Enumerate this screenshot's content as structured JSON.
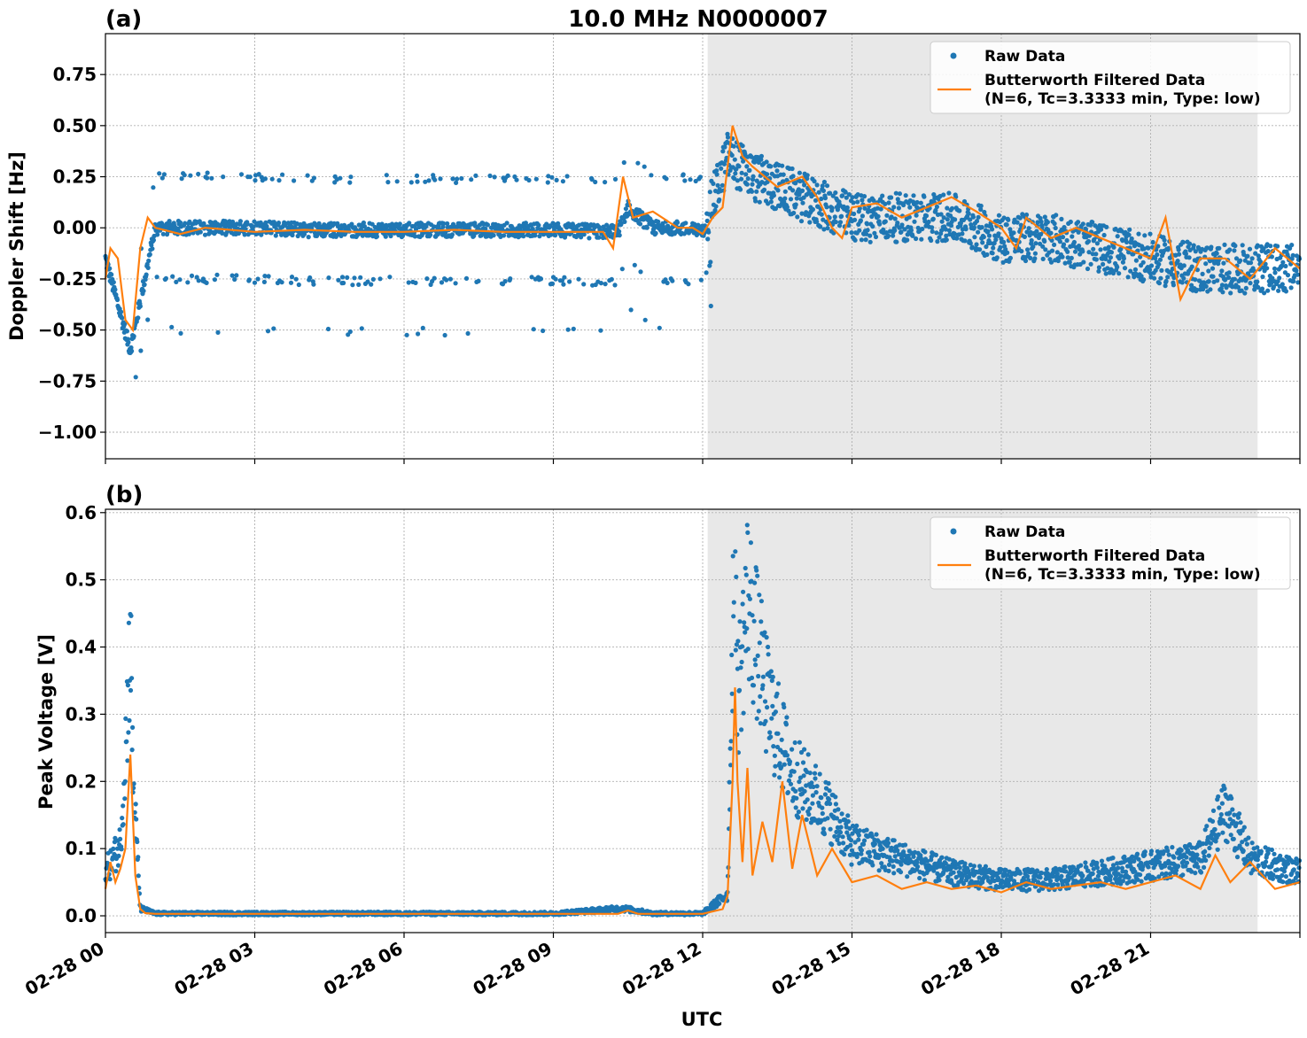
{
  "figure": {
    "title": "10.0 MHz N0000007",
    "xlabel": "UTC",
    "x_tick_labels": [
      "02-28 00",
      "02-28 03",
      "02-28 06",
      "02-28 09",
      "02-28 12",
      "02-28 15",
      "02-28 18",
      "02-28 21"
    ]
  },
  "colors": {
    "raw": "#1f77b4",
    "filtered": "#ff7f0e",
    "shade": "#e8e8e8",
    "grid": "#b0b0b0"
  },
  "chart_data": [
    {
      "panel_label": "(a)",
      "type": "scatter",
      "ylabel": "Doppler Shift [Hz]",
      "xlim_hours_utc": [
        0,
        24
      ],
      "ylim": [
        -1.13,
        0.95
      ],
      "yticks": [
        0.75,
        0.5,
        0.25,
        0.0,
        -0.25,
        -0.5,
        -0.75,
        -1.0
      ],
      "ytick_labels": [
        "0.75",
        "0.50",
        "0.25",
        "0.00",
        "−0.25",
        "−0.50",
        "−0.75",
        "−1.00"
      ],
      "shaded_interval_hours_utc": [
        12.1,
        23.15
      ],
      "grid": true,
      "legend_placement": "top-right",
      "legend": {
        "raw": "Raw Data",
        "filtered_line1": "Butterworth Filtered Data",
        "filtered_line2": "(N=6, Tc=3.3333 min, Type: low)"
      },
      "series": [
        {
          "name": "Raw Data",
          "style": "points",
          "note": "dense scatter; main band",
          "x_hours_utc": [
            0,
            0.5,
            1,
            2,
            3,
            4,
            5,
            6,
            7,
            8,
            9,
            10,
            10.3,
            10.5,
            11,
            11.5,
            12,
            12.5,
            13,
            14,
            15,
            16,
            17,
            18,
            19,
            20,
            21,
            22,
            23,
            24
          ],
          "y_hz": [
            -0.15,
            -0.6,
            0.0,
            0.0,
            0.0,
            -0.01,
            -0.01,
            -0.01,
            -0.01,
            -0.01,
            -0.01,
            -0.02,
            -0.02,
            0.1,
            0.0,
            0.0,
            -0.02,
            0.35,
            0.25,
            0.15,
            0.05,
            0.05,
            0.05,
            -0.05,
            -0.05,
            -0.1,
            -0.15,
            -0.2,
            -0.2,
            -0.2
          ]
        },
        {
          "name": "Butterworth Filtered Data",
          "style": "line",
          "x_hours_utc": [
            0,
            0.1,
            0.25,
            0.4,
            0.55,
            0.7,
            0.85,
            1,
            1.5,
            2,
            3,
            4,
            5,
            6,
            7,
            8,
            9,
            10,
            10.2,
            10.4,
            10.6,
            11,
            11.5,
            11.8,
            12,
            12.2,
            12.4,
            12.6,
            12.8,
            13,
            13.5,
            14,
            14.3,
            14.6,
            14.8,
            15,
            15.5,
            16,
            16.5,
            17,
            17.5,
            18,
            18.3,
            18.5,
            19,
            19.5,
            20,
            20.5,
            21,
            21.3,
            21.6,
            22,
            22.5,
            23,
            23.5,
            24
          ],
          "y_hz": [
            -0.25,
            -0.1,
            -0.15,
            -0.45,
            -0.5,
            -0.1,
            0.05,
            0.0,
            -0.03,
            0.0,
            -0.02,
            -0.01,
            -0.02,
            -0.02,
            -0.01,
            -0.02,
            -0.02,
            -0.02,
            -0.1,
            0.25,
            0.05,
            0.08,
            0.0,
            0.0,
            -0.03,
            0.05,
            0.1,
            0.5,
            0.35,
            0.3,
            0.2,
            0.25,
            0.15,
            0.0,
            -0.05,
            0.1,
            0.12,
            0.05,
            0.1,
            0.15,
            0.08,
            0.0,
            -0.1,
            0.05,
            -0.05,
            0.0,
            -0.05,
            -0.1,
            -0.15,
            0.05,
            -0.35,
            -0.15,
            -0.15,
            -0.25,
            -0.1,
            -0.2
          ]
        }
      ]
    },
    {
      "panel_label": "(b)",
      "type": "scatter",
      "ylabel": "Peak Voltage [V]",
      "xlim_hours_utc": [
        0,
        24
      ],
      "ylim": [
        -0.025,
        0.605
      ],
      "yticks": [
        0.0,
        0.1,
        0.2,
        0.3,
        0.4,
        0.5,
        0.6
      ],
      "ytick_labels": [
        "0.0",
        "0.1",
        "0.2",
        "0.3",
        "0.4",
        "0.5",
        "0.6"
      ],
      "shaded_interval_hours_utc": [
        12.1,
        23.15
      ],
      "grid": true,
      "legend_placement": "top-right",
      "legend": {
        "raw": "Raw Data",
        "filtered_line1": "Butterworth Filtered Data",
        "filtered_line2": "(N=6, Tc=3.3333 min, Type: low)"
      },
      "series": [
        {
          "name": "Raw Data",
          "style": "points",
          "x_hours_utc": [
            0,
            0.3,
            0.45,
            0.5,
            0.55,
            0.7,
            1,
            3,
            6,
            9,
            10.4,
            11,
            12,
            12.5,
            12.65,
            12.7,
            12.9,
            13.3,
            13.8,
            14.5,
            15,
            16,
            17,
            18,
            19,
            20,
            21,
            22,
            22.5,
            23,
            24
          ],
          "y_v": [
            0.06,
            0.1,
            0.3,
            0.41,
            0.2,
            0.01,
            0.003,
            0.003,
            0.003,
            0.003,
            0.01,
            0.003,
            0.003,
            0.03,
            0.58,
            0.3,
            0.45,
            0.3,
            0.2,
            0.15,
            0.1,
            0.08,
            0.06,
            0.05,
            0.05,
            0.06,
            0.07,
            0.08,
            0.15,
            0.08,
            0.06
          ]
        },
        {
          "name": "Butterworth Filtered Data",
          "style": "line",
          "x_hours_utc": [
            0,
            0.1,
            0.2,
            0.3,
            0.4,
            0.5,
            0.6,
            0.7,
            0.8,
            1,
            3,
            6,
            9,
            10.3,
            10.5,
            10.7,
            11,
            12,
            12.4,
            12.5,
            12.6,
            12.65,
            12.7,
            12.8,
            12.9,
            13,
            13.2,
            13.4,
            13.6,
            13.8,
            14,
            14.3,
            14.6,
            15,
            15.5,
            16,
            16.5,
            17,
            17.5,
            18,
            18.5,
            19,
            19.5,
            20,
            20.5,
            21,
            21.5,
            22,
            22.3,
            22.6,
            23,
            23.5,
            24
          ],
          "y_v": [
            0.04,
            0.08,
            0.05,
            0.07,
            0.1,
            0.24,
            0.06,
            0.01,
            0.004,
            0.003,
            0.003,
            0.003,
            0.003,
            0.003,
            0.008,
            0.003,
            0.003,
            0.003,
            0.01,
            0.03,
            0.2,
            0.34,
            0.2,
            0.08,
            0.22,
            0.06,
            0.14,
            0.08,
            0.2,
            0.07,
            0.15,
            0.06,
            0.1,
            0.05,
            0.06,
            0.04,
            0.05,
            0.04,
            0.045,
            0.035,
            0.05,
            0.04,
            0.045,
            0.05,
            0.04,
            0.05,
            0.06,
            0.04,
            0.09,
            0.05,
            0.08,
            0.04,
            0.05
          ]
        }
      ]
    }
  ]
}
